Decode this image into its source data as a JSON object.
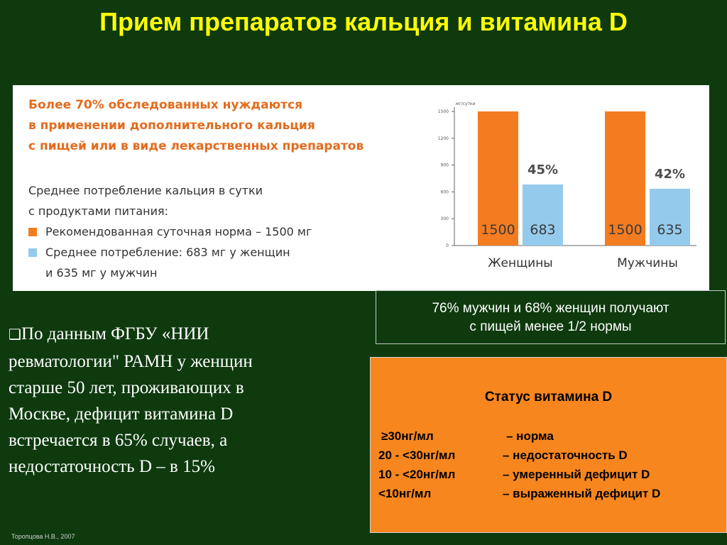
{
  "title": "Прием препаратов кальция и витамина D",
  "card": {
    "heading_lines": [
      "Более 70% обследованных нуждаются",
      "в применении дополнительного кальция",
      "с пищей или в виде лекарственных препаратов"
    ],
    "intake_lines": [
      "Среднее потребление кальция в сутки",
      "с продуктами питания:"
    ],
    "legend": [
      "Рекомендованная суточная норма – 1500 мг",
      "Среднее потребление: 683 мг у женщин"
    ],
    "legend_continuation": "и 635 мг у мужчин"
  },
  "chart_data": {
    "type": "bar",
    "unit_label": "мг/сутки",
    "categories": [
      "Женщины",
      "Мужчины"
    ],
    "series": [
      {
        "values": [
          1500,
          1500
        ],
        "labels": [
          "1500",
          "1500"
        ],
        "color": "#f37c20"
      },
      {
        "values": [
          683,
          635
        ],
        "labels": [
          "683",
          "635"
        ],
        "color": "#94cbed"
      }
    ],
    "percent_labels": [
      "45%",
      "42%"
    ],
    "ylim": [
      0,
      1500
    ],
    "yticks": [
      0,
      300,
      600,
      900,
      1200,
      1500
    ],
    "ytick_labels": [
      "0",
      "300",
      "600",
      "900",
      "1200",
      "1500"
    ],
    "grid": false,
    "percent_color": "#4d4d4d",
    "bar_text_color": "#3a3a3a"
  },
  "note": {
    "lines": [
      "76% мужчин и 68% женщин получают",
      "с пищей менее 1/2 нормы"
    ]
  },
  "study": {
    "bullet": "❑",
    "lines": [
      "По данным ФГБУ «НИИ",
      "ревматологии\" РАМН у женщин",
      "старше 50 лет, проживающих в",
      "Москве, дефицит витамина D",
      "встречается в 65% случаев, а",
      "недостаточность D – в 15%"
    ]
  },
  "vitamin_status": {
    "title": "Статус  витамина D",
    "rows": [
      {
        "range": "≥30нг/мл",
        "meaning": "– норма"
      },
      {
        "range": "20 - <30нг/мл",
        "meaning": "– недостаточность D"
      },
      {
        "range": "10 - <20нг/мл",
        "meaning": "– умеренный дефицит D"
      },
      {
        "range": "<10нг/мл",
        "meaning": "– выраженный дефицит D"
      }
    ]
  },
  "credit": "Торопцова Н.В., 2007",
  "colors": {
    "background": "#0e3a0e",
    "title": "#ffff00",
    "heading": "#e36c1e",
    "recommended": "#f37c20",
    "consumption": "#94cbed",
    "status_box": "#f7861f"
  }
}
